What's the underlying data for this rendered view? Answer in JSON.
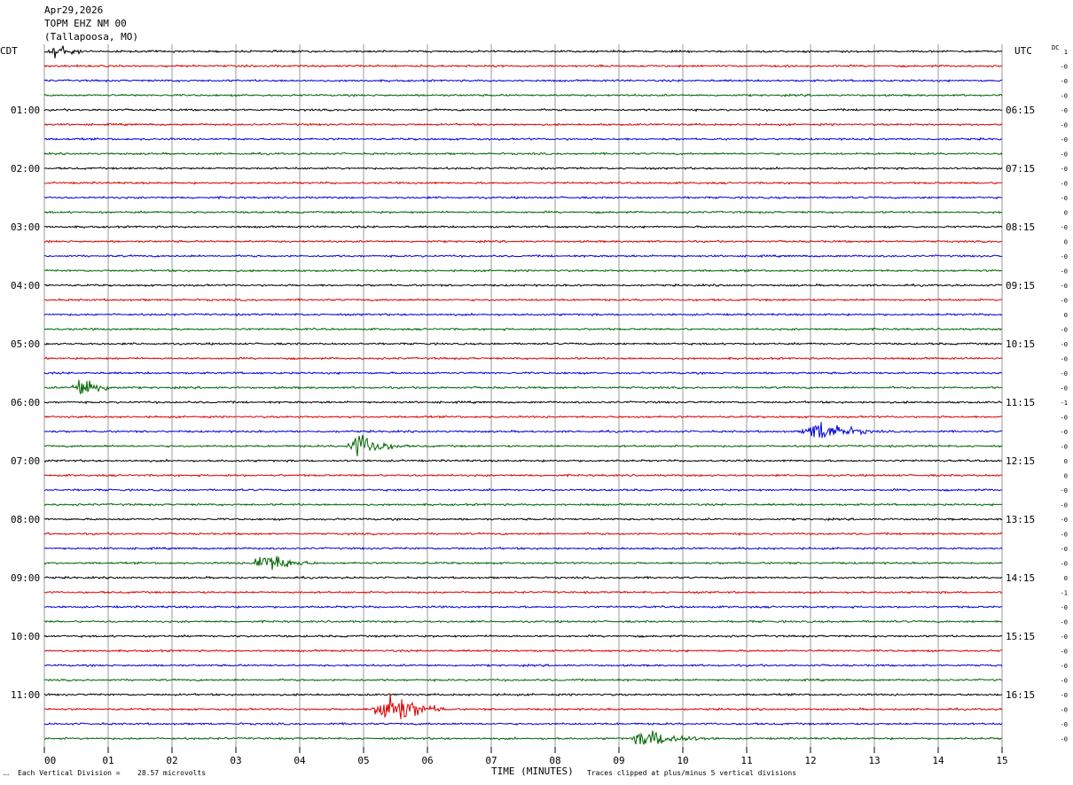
{
  "header": {
    "date": "Apr29,2026",
    "station": "TOPM EHZ NM 00",
    "location": "(Tallapoosa, MO)"
  },
  "left_axis_label": "CDT",
  "right_axis_label": "UTC",
  "dc_label": "DC",
  "x_axis_title": "TIME (MINUTES)",
  "footer": {
    "scale_note": "Each Vertical Division =",
    "scale_value": "28.57 microvolts",
    "clip_note": "Traces clipped at plus/minus 5 vertical divisions"
  },
  "colors": {
    "trace_cycle": [
      "#000000",
      "#dd0000",
      "#0000dd",
      "#006600"
    ],
    "grid": "#999999"
  },
  "chart_data": {
    "type": "line",
    "title": "TOPM EHZ NM 00",
    "xlabel": "TIME (MINUTES)",
    "ylabel": "",
    "x_range": [
      0,
      15
    ],
    "x_ticks": [
      "00",
      "01",
      "02",
      "03",
      "04",
      "05",
      "06",
      "07",
      "08",
      "09",
      "10",
      "11",
      "12",
      "13",
      "14",
      "15"
    ],
    "trace_count": 48,
    "left_time_labels": [
      {
        "row": 4,
        "label": "01:00"
      },
      {
        "row": 8,
        "label": "02:00"
      },
      {
        "row": 12,
        "label": "03:00"
      },
      {
        "row": 16,
        "label": "04:00"
      },
      {
        "row": 20,
        "label": "05:00"
      },
      {
        "row": 24,
        "label": "06:00"
      },
      {
        "row": 28,
        "label": "07:00"
      },
      {
        "row": 32,
        "label": "08:00"
      },
      {
        "row": 36,
        "label": "09:00"
      },
      {
        "row": 40,
        "label": "10:00"
      },
      {
        "row": 44,
        "label": "11:00"
      }
    ],
    "right_time_labels": [
      {
        "row": 4,
        "label": "06:15"
      },
      {
        "row": 8,
        "label": "07:15"
      },
      {
        "row": 12,
        "label": "08:15"
      },
      {
        "row": 16,
        "label": "09:15"
      },
      {
        "row": 20,
        "label": "10:15"
      },
      {
        "row": 24,
        "label": "11:15"
      },
      {
        "row": 28,
        "label": "12:15"
      },
      {
        "row": 32,
        "label": "13:15"
      },
      {
        "row": 36,
        "label": "14:15"
      },
      {
        "row": 40,
        "label": "15:15"
      },
      {
        "row": 44,
        "label": "16:15"
      }
    ],
    "dc_offsets": [
      "1",
      "-0",
      "-0",
      "-0",
      "-0",
      "-0",
      "-0",
      "-0",
      "-0",
      "-0",
      "-0",
      "0",
      "-0",
      "0",
      "-0",
      "-0",
      "-0",
      "-0",
      "0",
      "-0",
      "-0",
      "-0",
      "-0",
      "-0",
      "-1",
      "-0",
      "-0",
      "-0",
      "0",
      "0",
      "-0",
      "-0",
      "-0",
      "-0",
      "-0",
      "-0",
      "0",
      "-1",
      "-0",
      "-0",
      "-0",
      "-0",
      "-0",
      "-0",
      "-0",
      "-0",
      "-0",
      "-0"
    ],
    "events": [
      {
        "row": 0,
        "start_min": 0.0,
        "end_min": 0.7,
        "peak_div": 1.3
      },
      {
        "row": 23,
        "start_min": 0.4,
        "end_min": 1.2,
        "peak_div": 1.6
      },
      {
        "row": 26,
        "start_min": 11.8,
        "end_min": 13.2,
        "peak_div": 1.4
      },
      {
        "row": 27,
        "start_min": 4.7,
        "end_min": 5.7,
        "peak_div": 1.7
      },
      {
        "row": 35,
        "start_min": 3.2,
        "end_min": 4.3,
        "peak_div": 1.5
      },
      {
        "row": 45,
        "start_min": 5.1,
        "end_min": 6.3,
        "peak_div": 2.6
      },
      {
        "row": 47,
        "start_min": 9.1,
        "end_min": 10.6,
        "peak_div": 1.2
      }
    ]
  }
}
